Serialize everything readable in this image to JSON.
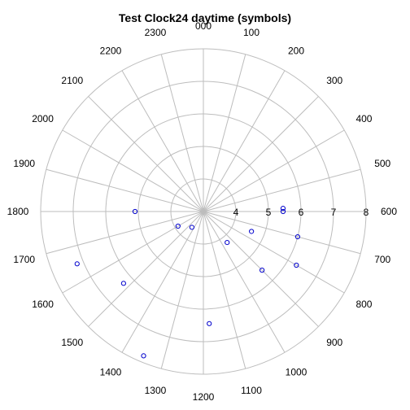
{
  "chart_data": {
    "type": "scatter",
    "coordinate_system": "polar-clock24",
    "title": "Test Clock24 daytime (symbols)",
    "hour_labels": [
      "000",
      "100",
      "200",
      "300",
      "400",
      "500",
      "600",
      "700",
      "800",
      "900",
      "1000",
      "1100",
      "1200",
      "1300",
      "1400",
      "1500",
      "1600",
      "1700",
      "1800",
      "1900",
      "2000",
      "2100",
      "2200",
      "2300"
    ],
    "radial_range": [
      3,
      8
    ],
    "radial_ticks": [
      4,
      5,
      6,
      7,
      8
    ],
    "radial_tick_labels": [
      "4",
      "5",
      "6",
      "7",
      "8"
    ],
    "grid": true,
    "colors": {
      "grid": "#bdbdbd",
      "points": "#0000cc"
    },
    "points": [
      {
        "hour": 5.85,
        "value": 5.45
      },
      {
        "hour": 6.0,
        "value": 5.45
      },
      {
        "hour": 7.0,
        "value": 6.0
      },
      {
        "hour": 7.5,
        "value": 4.6
      },
      {
        "hour": 8.0,
        "value": 6.3
      },
      {
        "hour": 9.0,
        "value": 5.55
      },
      {
        "hour": 9.5,
        "value": 4.2
      },
      {
        "hour": 11.8,
        "value": 6.45
      },
      {
        "hour": 13.5,
        "value": 7.8
      },
      {
        "hour": 14.4,
        "value": 3.6
      },
      {
        "hour": 15.2,
        "value": 6.3
      },
      {
        "hour": 16.0,
        "value": 3.9
      },
      {
        "hour": 16.5,
        "value": 7.2
      },
      {
        "hour": 18.0,
        "value": 5.1
      }
    ]
  }
}
